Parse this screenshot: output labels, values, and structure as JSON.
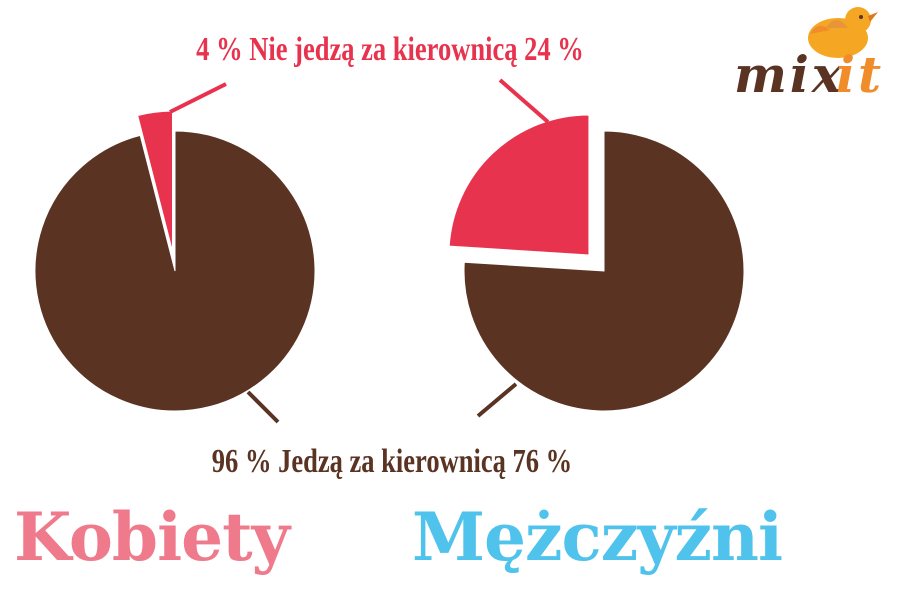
{
  "labels": {
    "top": "4 % Nie jedzą za kierownicą 24 %",
    "bottom": "96 % Jedzą za kierownicą 76 %"
  },
  "groups": {
    "women": "Kobiety",
    "men": "Mężczyźni"
  },
  "logo": {
    "text_main": "mix",
    "text_accent": "it",
    "icon": "bird-icon"
  },
  "colors": {
    "eating": "#5a3323",
    "not_eating": "#e8334e",
    "women_title": "#ef7a8c",
    "men_title": "#4fc3ec",
    "logo_brown": "#5a3323",
    "logo_orange": "#f08c2a",
    "bird": "#f5a623"
  },
  "chart_data": [
    {
      "type": "pie",
      "group": "Kobiety",
      "slices": [
        {
          "label": "Nie jedzą za kierownicą",
          "value": 4,
          "value_label": "4 %",
          "exploded": true
        },
        {
          "label": "Jedzą za kierownicą",
          "value": 96,
          "value_label": "96 %",
          "exploded": false
        }
      ]
    },
    {
      "type": "pie",
      "group": "Mężczyźni",
      "slices": [
        {
          "label": "Nie jedzą za kierownicą",
          "value": 24,
          "value_label": "24 %",
          "exploded": true
        },
        {
          "label": "Jedzą za kierownicą",
          "value": 76,
          "value_label": "76 %",
          "exploded": false
        }
      ]
    }
  ]
}
